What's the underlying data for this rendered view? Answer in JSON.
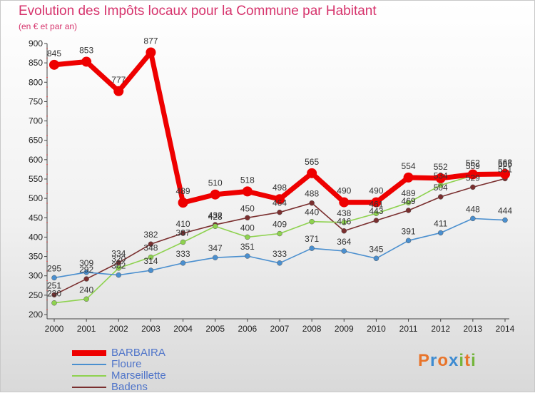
{
  "title": "Evolution des Impôts locaux pour la Commune par Habitant",
  "subtitle": "(en € et par an)",
  "logo": {
    "text": "Proxiti",
    "letters": [
      "P",
      "r",
      "o",
      "x",
      "i",
      "t",
      "i"
    ],
    "colors": [
      "#e8742a",
      "#3d8bd1",
      "#e8742a",
      "#3d8bd1",
      "#74b53c",
      "#e8742a",
      "#74b53c"
    ]
  },
  "chart_data": {
    "type": "line",
    "x": [
      "2000",
      "2001",
      "2002",
      "2003",
      "2004",
      "2005",
      "2006",
      "2007",
      "2008",
      "2009",
      "2010",
      "2011",
      "2012",
      "2013",
      "2014"
    ],
    "ylim": [
      200,
      900
    ],
    "yticks": [
      200,
      250,
      300,
      350,
      400,
      450,
      500,
      550,
      600,
      650,
      700,
      750,
      800,
      850,
      900
    ],
    "grid": false,
    "legend_position": "bottom-left",
    "series": [
      {
        "name": "BARBAIRA",
        "color": "#ee0000",
        "values": [
          845,
          853,
          777,
          877,
          489,
          510,
          518,
          498,
          565,
          490,
          490,
          554,
          552,
          562,
          563
        ]
      },
      {
        "name": "Floure",
        "color": "#4a8fcf",
        "values": [
          295,
          309,
          302,
          314,
          333,
          347,
          351,
          333,
          371,
          364,
          345,
          391,
          411,
          448,
          444
        ]
      },
      {
        "name": "Marseillette",
        "color": "#8ed24f",
        "values": [
          230,
          240,
          320,
          348,
          387,
          428,
          400,
          409,
          440,
          438,
          461,
          489,
          534,
          559,
          565
        ]
      },
      {
        "name": "Badens",
        "color": "#7a2f2f",
        "values": [
          251,
          292,
          334,
          382,
          410,
          432,
          450,
          464,
          488,
          416,
          443,
          469,
          504,
          529,
          551
        ]
      }
    ]
  }
}
